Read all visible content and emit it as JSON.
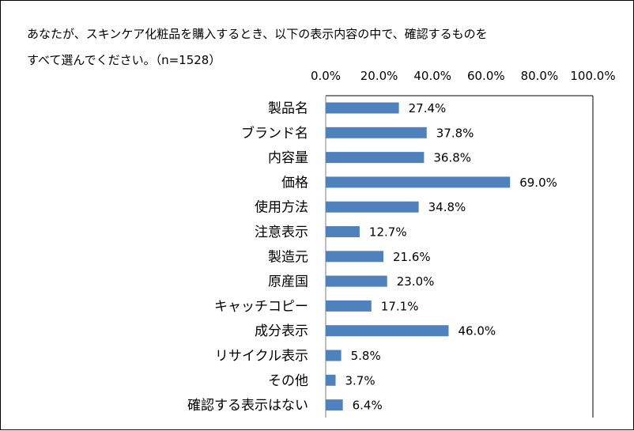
{
  "chart_data": {
    "type": "bar",
    "orientation": "horizontal",
    "title_lines": [
      "あなたが、スキンケア化粧品を購入するとき、以下の表示内容の中で、確認するものを",
      "すべて選んでください。（n=1528）"
    ],
    "categories": [
      "製品名",
      "ブランド名",
      "内容量",
      "価格",
      "使用方法",
      "注意表示",
      "製造元",
      "原産国",
      "キャッチコピー",
      "成分表示",
      "リサイクル表示",
      "その他",
      "確認する表示はない"
    ],
    "values": [
      27.4,
      37.8,
      36.8,
      69.0,
      34.8,
      12.7,
      21.6,
      23.0,
      17.1,
      46.0,
      5.8,
      3.7,
      6.4
    ],
    "value_labels": [
      "27.4%",
      "37.8%",
      "36.8%",
      "69.0%",
      "34.8%",
      "12.7%",
      "21.6%",
      "23.0%",
      "17.1%",
      "46.0%",
      "5.8%",
      "3.7%",
      "6.4%"
    ],
    "x_ticks": [
      "0.0%",
      "20.0%",
      "40.0%",
      "60.0%",
      "80.0%",
      "100.0%"
    ],
    "xlim": [
      0,
      100
    ],
    "xaxis_position": "top",
    "grid": false,
    "legend": "none",
    "bar_color": "#4F81BD"
  }
}
